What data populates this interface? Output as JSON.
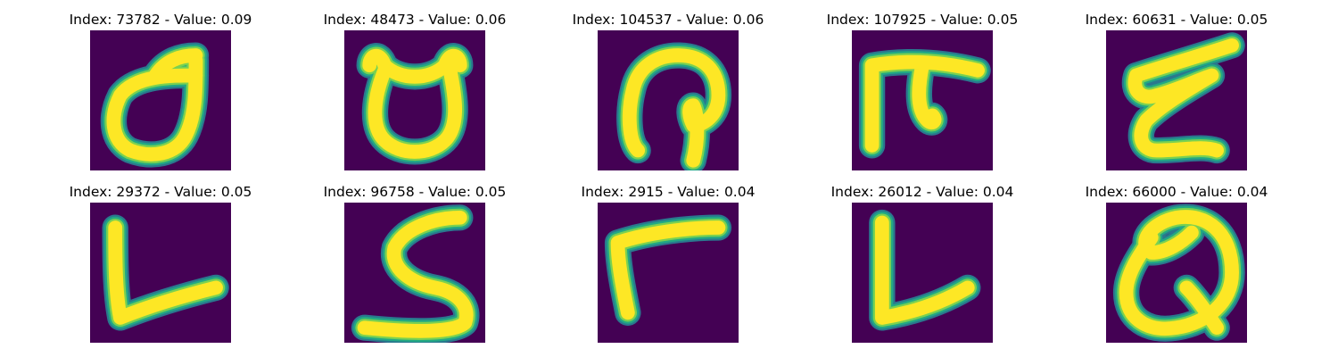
{
  "colors": {
    "background": "#ffffff",
    "image_background": "#440154",
    "stroke_core": "#fde725",
    "stroke_mid": "#7ad151",
    "stroke_edge": "#22a884",
    "stroke_outer": "#2a788e"
  },
  "panels": [
    {
      "title": "Index: 73782 - Value: 0.09",
      "glyph": "d-loop"
    },
    {
      "title": "Index: 48473 - Value: 0.06",
      "glyph": "cup"
    },
    {
      "title": "Index: 104537 - Value: 0.06",
      "glyph": "hook"
    },
    {
      "title": "Index: 107925 - Value: 0.05",
      "glyph": "f-shape"
    },
    {
      "title": "Index: 60631 - Value: 0.05",
      "glyph": "z-e"
    },
    {
      "title": "Index: 29372 - Value: 0.05",
      "glyph": "l-shape"
    },
    {
      "title": "Index: 96758 - Value: 0.05",
      "glyph": "s-shape"
    },
    {
      "title": "Index: 2915 - Value: 0.04",
      "glyph": "gamma"
    },
    {
      "title": "Index: 26012 - Value: 0.04",
      "glyph": "l-shape-2"
    },
    {
      "title": "Index: 66000 - Value: 0.04",
      "glyph": "q-shape"
    }
  ]
}
